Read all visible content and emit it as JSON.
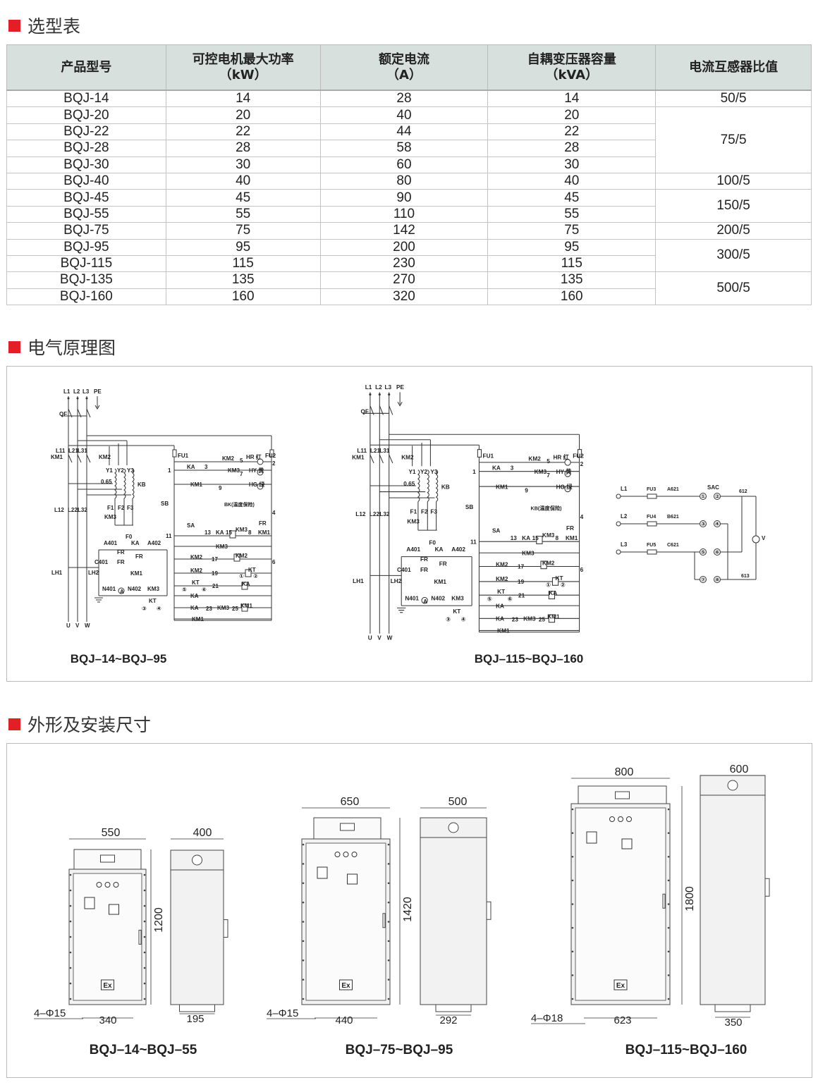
{
  "sections": {
    "selection_table": "选型表",
    "schematic": "电气原理图",
    "dimensions": "外形及安装尺寸"
  },
  "colors": {
    "accent": "#e31e24",
    "header_bg": "#d8e0dd"
  },
  "table": {
    "headers": [
      {
        "line1": "产品型号",
        "line2": ""
      },
      {
        "line1": "可控电机最大功率",
        "line2": "（kW）"
      },
      {
        "line1": "额定电流",
        "line2": "（A）"
      },
      {
        "line1": "自耦变压器容量",
        "line2": "（kVA）"
      },
      {
        "line1": "电流互感器比值",
        "line2": ""
      }
    ],
    "rows": [
      [
        "BQJ-14",
        "14",
        "28",
        "14"
      ],
      [
        "BQJ-20",
        "20",
        "40",
        "20"
      ],
      [
        "BQJ-22",
        "22",
        "44",
        "22"
      ],
      [
        "BQJ-28",
        "28",
        "58",
        "28"
      ],
      [
        "BQJ-30",
        "30",
        "60",
        "30"
      ],
      [
        "BQJ-40",
        "40",
        "80",
        "40"
      ],
      [
        "BQJ-45",
        "45",
        "90",
        "45"
      ],
      [
        "BQJ-55",
        "55",
        "110",
        "55"
      ],
      [
        "BQJ-75",
        "75",
        "142",
        "75"
      ],
      [
        "BQJ-95",
        "95",
        "200",
        "95"
      ],
      [
        "BQJ-115",
        "115",
        "230",
        "115"
      ],
      [
        "BQJ-135",
        "135",
        "270",
        "135"
      ],
      [
        "BQJ-160",
        "160",
        "320",
        "160"
      ]
    ],
    "ct_ratio_groups": [
      {
        "value": "50/5",
        "rows": 1
      },
      {
        "value": "75/5",
        "rows": 4
      },
      {
        "value": "100/5",
        "rows": 1
      },
      {
        "value": "150/5",
        "rows": 2
      },
      {
        "value": "200/5",
        "rows": 1
      },
      {
        "value": "300/5",
        "rows": 2
      },
      {
        "value": "500/5",
        "rows": 2
      }
    ]
  },
  "schematics": [
    {
      "caption": "BQJ–14~BQJ–95",
      "labels": [
        "L1",
        "L2",
        "L3",
        "PE",
        "QF",
        "L11",
        "L21",
        "L31",
        "KM1",
        "KM2",
        "Y1",
        "Y2",
        "Y3",
        "0.65",
        "KB",
        "L12",
        "L22",
        "L32",
        "F1",
        "F2",
        "F3",
        "KM3",
        "F0",
        "A401",
        "KA",
        "A402",
        "FR",
        "FR",
        "C401",
        "FR",
        "LH1",
        "LH2",
        "KM1",
        "N401",
        "A",
        "N402",
        "KM3",
        "KT",
        "③",
        "④",
        "U",
        "V",
        "W",
        "FU1",
        "KM2",
        "5",
        "HR 红",
        "FU2",
        "2",
        "1",
        "KA",
        "3",
        "KM3",
        "7",
        "HY 黄",
        "KM1",
        "9",
        "HG 绿",
        "SB",
        "BK(温度保险)",
        "4",
        "FR",
        "11",
        "SA",
        "13",
        "KA",
        "15",
        "KM3",
        "8",
        "KM1",
        "KM3",
        "KM2",
        "17",
        "KM2",
        "6",
        "KM2",
        "19",
        "①",
        "KT",
        "②",
        "KT",
        "⑤",
        "⑥",
        "21",
        "KA",
        "KA",
        "KA",
        "23",
        "KM3",
        "25",
        "KM1",
        "KM1"
      ]
    },
    {
      "caption": "BQJ–115~BQJ–160",
      "labels": [
        "L1",
        "L2",
        "L3",
        "PE",
        "QF",
        "L11",
        "L21",
        "L31",
        "KM1",
        "KM2",
        "Y1",
        "Y2",
        "Y3",
        "0.65",
        "KB",
        "L12",
        "L22",
        "L32",
        "F1",
        "F2",
        "F3",
        "KM3",
        "F0",
        "A401",
        "KA",
        "A402",
        "FR",
        "FR",
        "C401",
        "FR",
        "LH1",
        "LH2",
        "KM1",
        "N401",
        "A",
        "N402",
        "KM3",
        "KT",
        "③",
        "④",
        "U",
        "V",
        "W",
        "FU1",
        "KM2",
        "5",
        "HR 红",
        "FU2",
        "2",
        "1",
        "KA",
        "3",
        "KM3",
        "7",
        "HY 黄",
        "KM1",
        "9",
        "HG 绿",
        "SB",
        "KB(温度保险)",
        "4",
        "FR",
        "11",
        "SA",
        "13",
        "KA",
        "15",
        "KM3",
        "8",
        "KM1",
        "KM3",
        "KM2",
        "17",
        "KM2",
        "6",
        "KM2",
        "19",
        "①",
        "KT",
        "②",
        "KT",
        "⑤",
        "⑥",
        "21",
        "KA",
        "KA",
        "KA",
        "23",
        "KM3",
        "25",
        "KM1",
        "KM1"
      ]
    }
  ],
  "voltmeter_circuit": {
    "lines": [
      {
        "phase": "L1",
        "fuse": "FU3",
        "wire": "A621"
      },
      {
        "phase": "L2",
        "fuse": "FU4",
        "wire": "B621"
      },
      {
        "phase": "L3",
        "fuse": "FU5",
        "wire": "C621"
      }
    ],
    "switch": "SAC",
    "terminals": [
      "①",
      "②",
      "③",
      "④",
      "⑤",
      "⑥",
      "⑦",
      "⑧"
    ],
    "nodes": [
      "612",
      "613"
    ],
    "meter": "V"
  },
  "cabinets": [
    {
      "caption": "BQJ–14~BQJ–55",
      "width": "550",
      "depth": "400",
      "height": "1200",
      "holes": "4–Φ15",
      "mount_w": "340",
      "mount_d": "195"
    },
    {
      "caption": "BQJ–75~BQJ–95",
      "width": "650",
      "depth": "500",
      "height": "1420",
      "holes": "4–Φ15",
      "mount_w": "440",
      "mount_d": "292"
    },
    {
      "caption": "BQJ–115~BQJ–160",
      "width": "800",
      "depth": "600",
      "height": "1800",
      "holes": "4–Φ18",
      "mount_w": "623",
      "mount_d": "350"
    }
  ],
  "ex_mark": "Ex"
}
